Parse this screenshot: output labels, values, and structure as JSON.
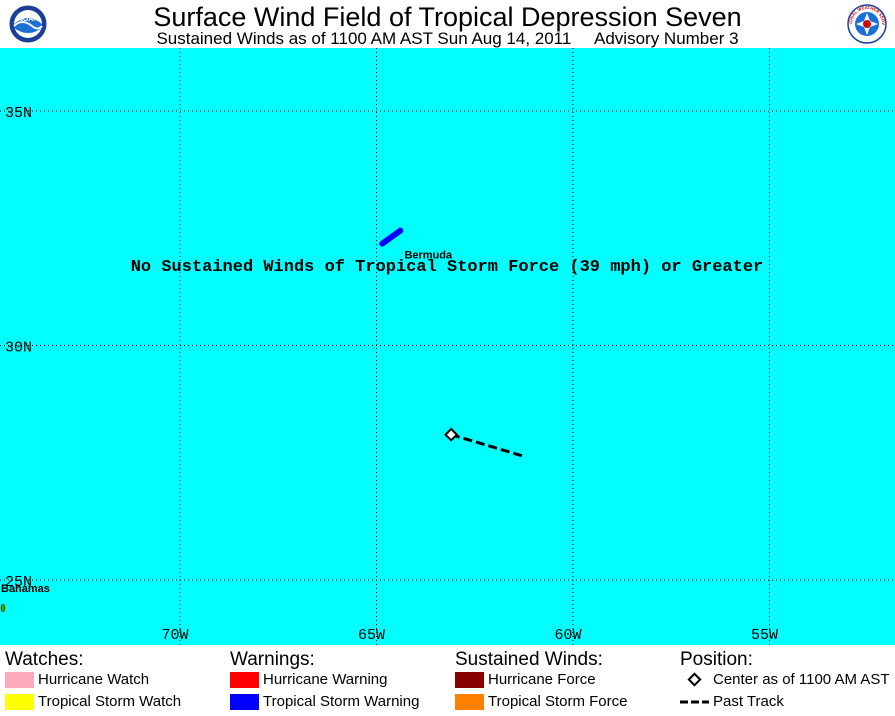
{
  "header": {
    "title": "Surface Wind Field of Tropical Depression Seven",
    "subtitle": "Sustained Winds as of 1100 AM AST Sun Aug 14, 2011     Advisory Number 3",
    "logo_left_text": "NOAA",
    "logo_right_text": "NATIONAL WEATHER SERVICE"
  },
  "map": {
    "ocean_color": "#00ffff",
    "grid": true,
    "lon_range": [
      -74.5,
      -51.3
    ],
    "lat_range": [
      22.9,
      36.5
    ],
    "lat_labels": [
      {
        "lat": 35,
        "text": "35N"
      },
      {
        "lat": 30,
        "text": "30N"
      },
      {
        "lat": 25,
        "text": "25N"
      }
    ],
    "lon_labels": [
      {
        "lon": -70,
        "text": "70W"
      },
      {
        "lon": -65,
        "text": "65W"
      },
      {
        "lon": -60,
        "text": "60W"
      },
      {
        "lon": -55,
        "text": "55W"
      }
    ],
    "places": [
      {
        "name": "Bermuda",
        "lat": 32.3,
        "lon": -64.7,
        "label": "Bermuda"
      },
      {
        "name": "Bahamas",
        "lat": 24.2,
        "lon": -74.5,
        "label": "Bahamas"
      }
    ],
    "message": "No Sustained Winds of Tropical Storm Force (39 mph) or Greater",
    "storm_center": {
      "lat": 28.1,
      "lon": -63.1
    },
    "past_track": [
      {
        "lat": 27.65,
        "lon": -61.3
      },
      {
        "lat": 27.8,
        "lon": -61.9
      },
      {
        "lat": 27.95,
        "lon": -62.5
      },
      {
        "lat": 28.05,
        "lon": -62.9
      },
      {
        "lat": 28.1,
        "lon": -63.1
      }
    ],
    "tropical_storm_warning_color": "#0000ff",
    "land_color": "#44aa00"
  },
  "legend": {
    "watches": {
      "heading": "Watches:",
      "items": [
        {
          "label": "Hurricane Watch",
          "color": "#ffaabb"
        },
        {
          "label": "Tropical Storm Watch",
          "color": "#ffff00"
        }
      ]
    },
    "warnings": {
      "heading": "Warnings:",
      "items": [
        {
          "label": "Hurricane Warning",
          "color": "#ff0000"
        },
        {
          "label": "Tropical Storm Warning",
          "color": "#0000ff"
        }
      ]
    },
    "winds": {
      "heading": "Sustained Winds:",
      "items": [
        {
          "label": "Hurricane Force",
          "color": "#880000"
        },
        {
          "label": "Tropical Storm Force",
          "color": "#ff8000"
        }
      ]
    },
    "position": {
      "heading": "Position:",
      "items": [
        {
          "label": "Center as of 1100 AM AST",
          "icon": "diamond-marker-icon"
        },
        {
          "label": "Past Track",
          "icon": "dashed-line-icon"
        }
      ]
    }
  }
}
